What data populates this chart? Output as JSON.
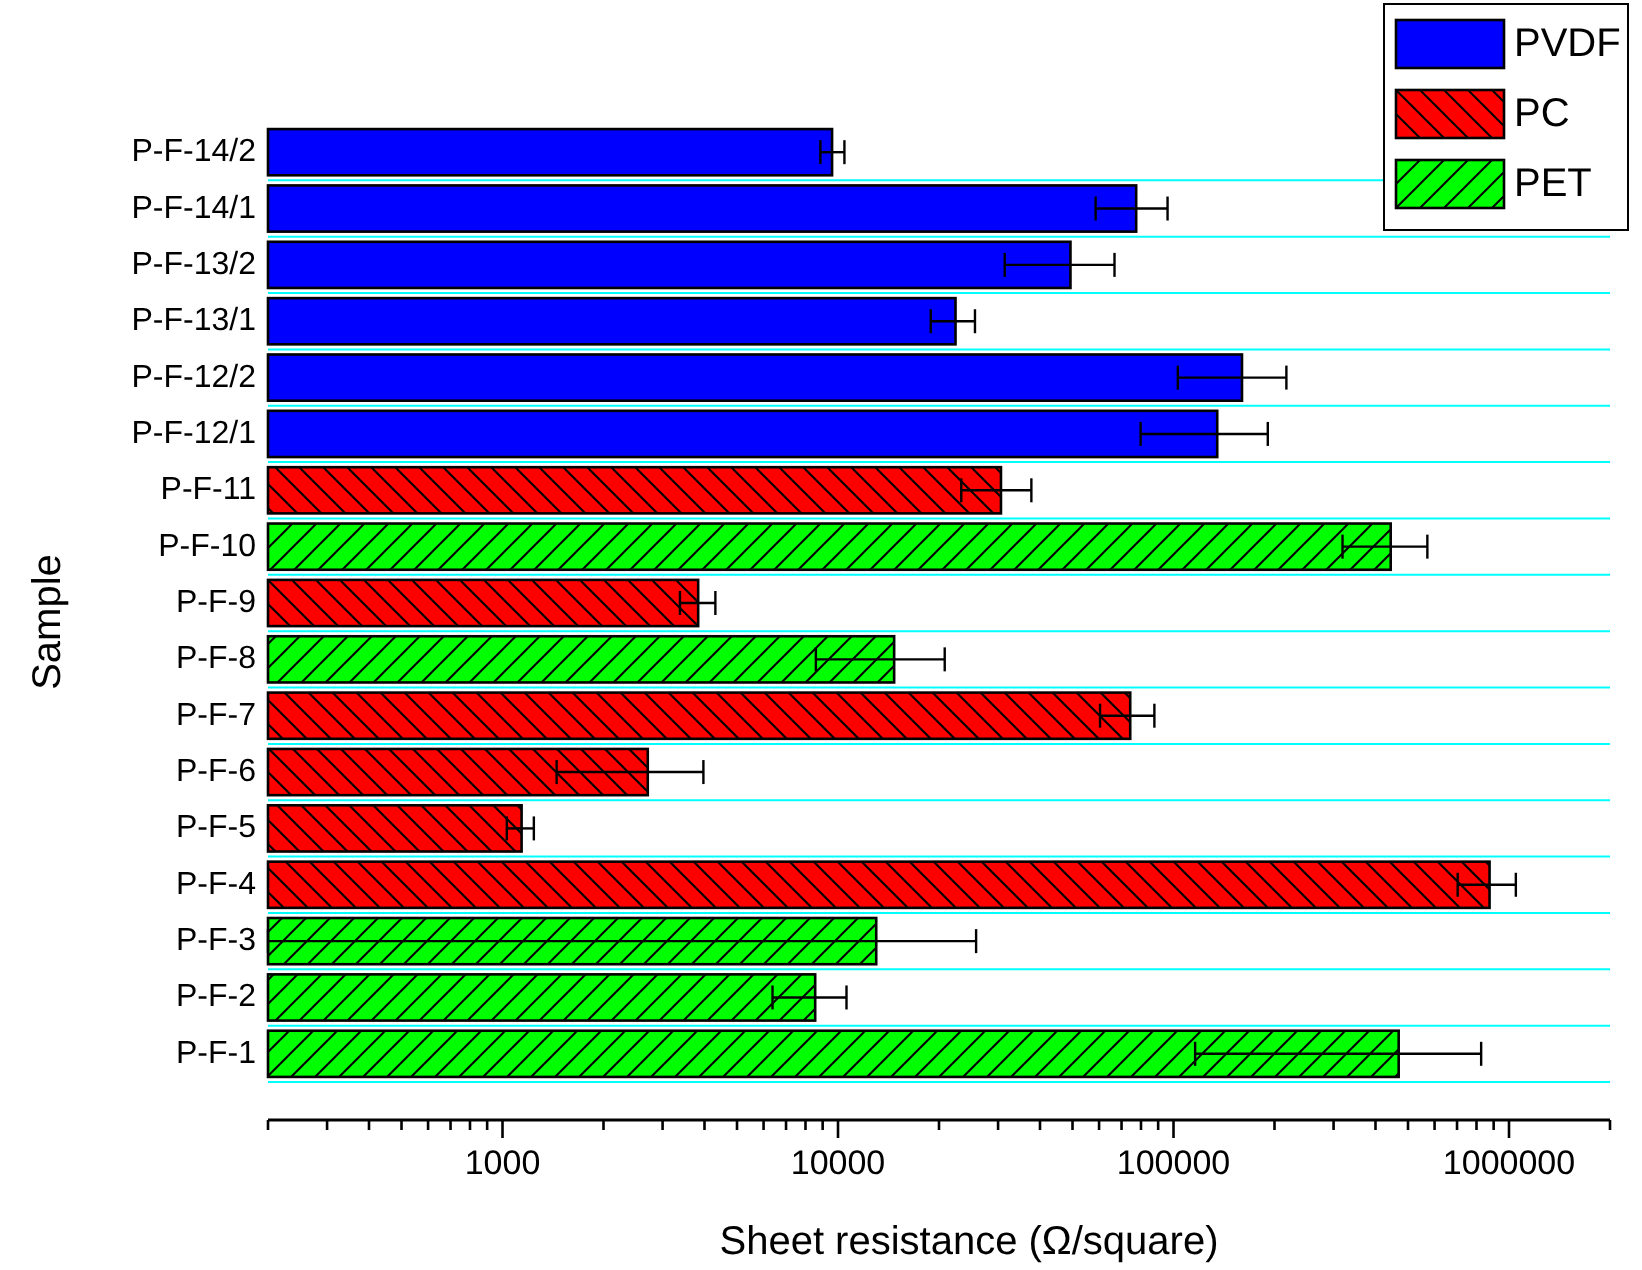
{
  "chart_data": {
    "type": "bar",
    "orientation": "horizontal",
    "log": "x",
    "xlabel": "Sheet resistance (Ω/square)",
    "ylabel": "Sample",
    "categories": [
      "P-F-14/2",
      "P-F-14/1",
      "P-F-13/2",
      "P-F-13/1",
      "P-F-12/2",
      "P-F-12/1",
      "P-F-11",
      "P-F-10",
      "P-F-9",
      "P-F-8",
      "P-F-7",
      "P-F-6",
      "P-F-5",
      "P-F-4",
      "P-F-3",
      "P-F-2",
      "P-F-1"
    ],
    "series": [
      {
        "name": "PVDF",
        "color": "#0000ff",
        "values": [
          9600,
          77400,
          49300,
          22400,
          160000,
          135000,
          null,
          null,
          null,
          null,
          null,
          null,
          null,
          null,
          null,
          null,
          null
        ],
        "errors": [
          [
            8860,
            10450
          ],
          [
            58600,
            96000
          ],
          [
            31400,
            66700
          ],
          [
            18900,
            25600
          ],
          [
            103000,
            217000
          ],
          [
            79800,
            191000
          ],
          null,
          null,
          null,
          null,
          null,
          null,
          null,
          null,
          null,
          null,
          null
        ]
      },
      {
        "name": "PC",
        "color": "#ff0000",
        "values": [
          null,
          null,
          null,
          null,
          null,
          null,
          30600,
          null,
          3830,
          null,
          74300,
          2710,
          1140,
          875000,
          null,
          null,
          null
        ],
        "errors": [
          null,
          null,
          null,
          null,
          null,
          null,
          [
            23300,
            37700
          ],
          null,
          [
            3380,
            4310
          ],
          null,
          [
            60400,
            87700
          ],
          [
            1450,
            3970
          ],
          [
            1030,
            1240
          ],
          [
            703000,
            1048000
          ],
          null,
          null,
          null
        ]
      },
      {
        "name": "PET",
        "color": "#00ff00",
        "values": [
          null,
          null,
          null,
          null,
          null,
          null,
          null,
          444000,
          null,
          14700,
          null,
          null,
          null,
          null,
          13000,
          8550,
          469000
        ],
        "errors": [
          null,
          null,
          null,
          null,
          null,
          null,
          null,
          [
            319000,
            571000
          ],
          null,
          [
            8590,
            20800
          ],
          null,
          null,
          null,
          null,
          [
            200,
            25800
          ],
          [
            6380,
            10600
          ],
          [
            116000,
            826000
          ]
        ]
      }
    ],
    "xlim": [
      200,
      2000000
    ],
    "xticks": [
      {
        "value": 200,
        "label": null
      },
      {
        "value": 300,
        "label": null
      },
      {
        "value": 400,
        "label": null
      },
      {
        "value": 500,
        "label": null
      },
      {
        "value": 600,
        "label": null
      },
      {
        "value": 700,
        "label": null
      },
      {
        "value": 800,
        "label": null
      },
      {
        "value": 900,
        "label": null
      },
      1000,
      {
        "value": 2000,
        "label": null
      },
      {
        "value": 3000,
        "label": null
      },
      {
        "value": 4000,
        "label": null
      },
      {
        "value": 5000,
        "label": null
      },
      {
        "value": 6000,
        "label": null
      },
      {
        "value": 7000,
        "label": null
      },
      {
        "value": 8000,
        "label": null
      },
      {
        "value": 9000,
        "label": null
      },
      10000,
      {
        "value": 20000,
        "label": null
      },
      {
        "value": 30000,
        "label": null
      },
      {
        "value": 40000,
        "label": null
      },
      {
        "value": 50000,
        "label": null
      },
      {
        "value": 60000,
        "label": null
      },
      {
        "value": 70000,
        "label": null
      },
      {
        "value": 80000,
        "label": null
      },
      {
        "value": 90000,
        "label": null
      },
      100000,
      {
        "value": 200000,
        "label": null
      },
      {
        "value": 300000,
        "label": null
      },
      {
        "value": 400000,
        "label": null
      },
      {
        "value": 500000,
        "label": null
      },
      {
        "value": 600000,
        "label": null
      },
      {
        "value": 700000,
        "label": null
      },
      {
        "value": 800000,
        "label": null
      },
      {
        "value": 900000,
        "label": null
      },
      1000000,
      {
        "value": 2000000,
        "label": null
      }
    ],
    "grid": "y",
    "legend": "top right"
  }
}
